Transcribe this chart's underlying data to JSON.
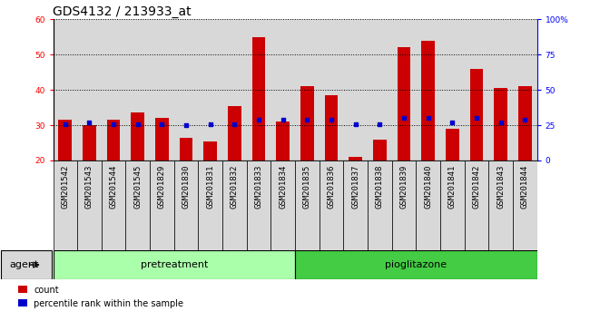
{
  "title": "GDS4132 / 213933_at",
  "samples": [
    "GSM201542",
    "GSM201543",
    "GSM201544",
    "GSM201545",
    "GSM201829",
    "GSM201830",
    "GSM201831",
    "GSM201832",
    "GSM201833",
    "GSM201834",
    "GSM201835",
    "GSM201836",
    "GSM201837",
    "GSM201838",
    "GSM201839",
    "GSM201840",
    "GSM201841",
    "GSM201842",
    "GSM201843",
    "GSM201844"
  ],
  "count_values": [
    31.5,
    30.0,
    31.5,
    33.5,
    32.0,
    26.5,
    25.5,
    35.5,
    55.0,
    31.0,
    41.0,
    38.5,
    21.0,
    26.0,
    52.0,
    54.0,
    29.0,
    46.0,
    40.5,
    41.0
  ],
  "percentile_values": [
    26,
    27,
    26,
    26,
    26,
    25,
    26,
    26,
    29,
    29,
    29,
    29,
    26,
    26,
    30,
    30,
    27,
    30,
    27,
    29
  ],
  "pretreatment_count": 10,
  "pioglitazone_count": 10,
  "pretreatment_label": "pretreatment",
  "pioglitazone_label": "pioglitazone",
  "agent_label": "agent",
  "ylim_left": [
    20,
    60
  ],
  "ylim_right": [
    0,
    100
  ],
  "yticks_left": [
    20,
    30,
    40,
    50,
    60
  ],
  "yticks_right": [
    0,
    25,
    50,
    75,
    100
  ],
  "ytick_labels_right": [
    "0",
    "25",
    "50",
    "75",
    "100%"
  ],
  "bar_color": "#cc0000",
  "dot_color": "#0000cc",
  "pretreat_bg": "#aaffaa",
  "pioglitazone_bg": "#44cc44",
  "cell_bg": "#d8d8d8",
  "bar_width": 0.55,
  "legend_count": "count",
  "legend_pct": "percentile rank within the sample",
  "title_fontsize": 10,
  "tick_fontsize": 6.5,
  "label_fontsize": 8
}
